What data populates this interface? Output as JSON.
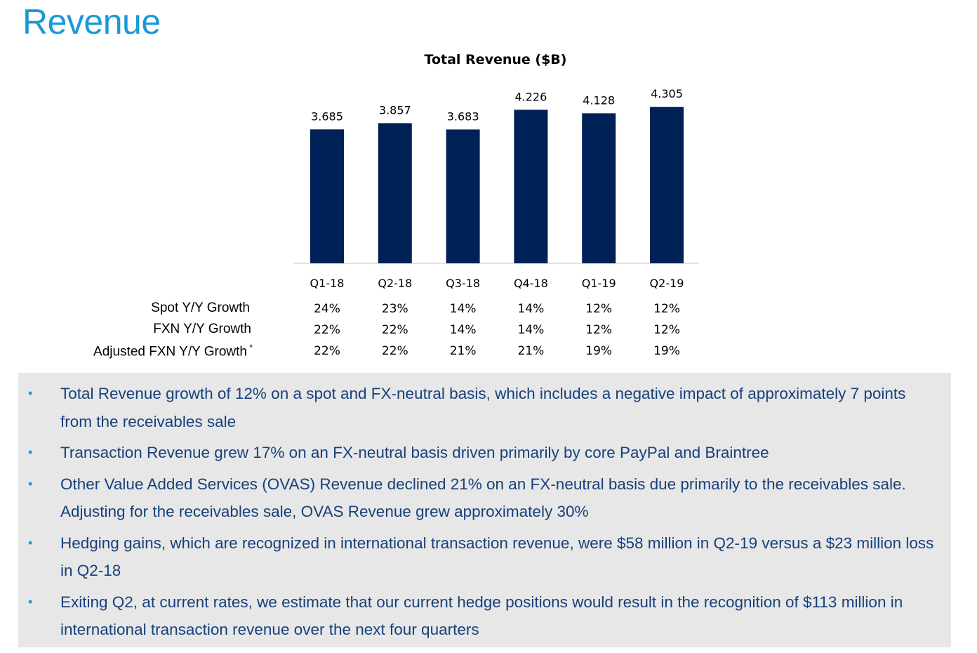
{
  "page": {
    "title": "Revenue"
  },
  "chart_data": {
    "type": "bar",
    "title": "Total Revenue ($B)",
    "xlabel": "",
    "ylabel": "",
    "categories": [
      "Q1-18",
      "Q2-18",
      "Q3-18",
      "Q4-18",
      "Q1-19",
      "Q2-19"
    ],
    "values": [
      3.685,
      3.857,
      3.683,
      4.226,
      4.128,
      4.305
    ],
    "data_labels": [
      "3.685",
      "3.857",
      "3.683",
      "4.226",
      "4.128",
      "4.305"
    ],
    "bar_color": "#002157",
    "grid": false,
    "legend": "none"
  },
  "growth_table": {
    "rows": [
      {
        "label": "Spot Y/Y Growth",
        "marker": "",
        "values": [
          "24%",
          "23%",
          "14%",
          "14%",
          "12%",
          "12%"
        ]
      },
      {
        "label": "FXN Y/Y Growth",
        "marker": "",
        "values": [
          "22%",
          "22%",
          "14%",
          "14%",
          "12%",
          "12%"
        ]
      },
      {
        "label": "Adjusted FXN Y/Y Growth",
        "marker": "*",
        "values": [
          "22%",
          "22%",
          "21%",
          "21%",
          "19%",
          "19%"
        ]
      }
    ]
  },
  "notes": {
    "bullet": "•",
    "items": [
      "Total Revenue growth of 12% on a spot and FX-neutral basis, which includes a negative impact of approximately 7 points from the receivables sale",
      "Transaction Revenue grew 17% on an FX-neutral basis driven primarily by core PayPal and Braintree",
      "Other Value Added Services (OVAS) Revenue declined 21% on an FX-neutral basis due primarily to the receivables sale.  Adjusting for the receivables sale, OVAS Revenue grew approximately 30%",
      "Hedging gains, which are recognized in international transaction revenue, were $58 million in Q2-19 versus a $23 million loss in Q2-18",
      "Exiting Q2, at current rates, we estimate that our current hedge positions would result in the recognition of $113 million in international transaction revenue over the next four quarters"
    ]
  },
  "colors": {
    "title": "#1a9ad6",
    "bar": "#002157",
    "note_text": "#17417a",
    "note_bg": "#e7e7e8"
  }
}
